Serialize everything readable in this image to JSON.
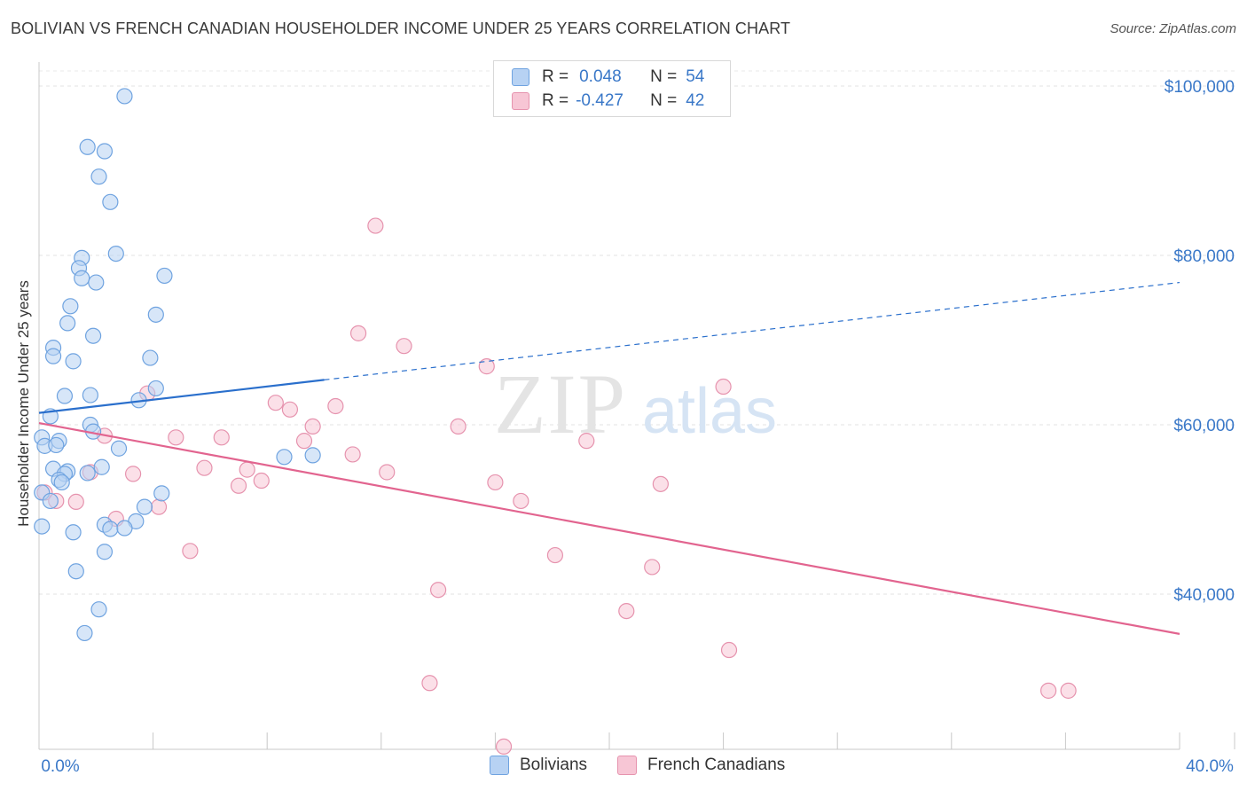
{
  "title": "BOLIVIAN VS FRENCH CANADIAN HOUSEHOLDER INCOME UNDER 25 YEARS CORRELATION CHART",
  "source": "Source: ZipAtlas.com",
  "watermark": {
    "zip": "ZIP",
    "atlas": "atlas"
  },
  "legend": {
    "r_label": "R =",
    "n_label": "N =",
    "rows": [
      {
        "r": "0.048",
        "n": "54",
        "color": "#6fa3e0"
      },
      {
        "r": "-0.427",
        "n": "42",
        "color": "#ea8aa8"
      }
    ]
  },
  "colors": {
    "blue_fill": "#b7d2f3",
    "blue_stroke": "#6fa3e0",
    "blue_line": "#2a6fcc",
    "pink_fill": "#f7c6d5",
    "pink_stroke": "#e693ae",
    "pink_line": "#e2648f",
    "tick_label": "#3a78c8"
  },
  "chart_data": {
    "type": "scatter",
    "title": "BOLIVIAN VS FRENCH CANADIAN HOUSEHOLDER INCOME UNDER 25 YEARS CORRELATION CHART",
    "xlabel": "",
    "ylabel": "Householder Income Under 25 years",
    "xlim": [
      0,
      40
    ],
    "ylim": [
      20000,
      103000
    ],
    "x_tick_labels": [
      "0.0%",
      "40.0%"
    ],
    "y_ticks": [
      40000,
      60000,
      80000,
      100000
    ],
    "y_tick_labels": [
      "$40,000",
      "$60,000",
      "$80,000",
      "$100,000"
    ],
    "grid": true,
    "series": [
      {
        "name": "Bolivians",
        "points": [
          [
            3.0,
            98800
          ],
          [
            1.7,
            92800
          ],
          [
            2.3,
            92300
          ],
          [
            2.1,
            89300
          ],
          [
            2.5,
            86300
          ],
          [
            2.7,
            80200
          ],
          [
            1.5,
            79700
          ],
          [
            1.4,
            78500
          ],
          [
            1.5,
            77300
          ],
          [
            2.0,
            76800
          ],
          [
            4.4,
            77600
          ],
          [
            1.1,
            74000
          ],
          [
            4.1,
            73000
          ],
          [
            1.0,
            72000
          ],
          [
            1.9,
            70500
          ],
          [
            0.5,
            69100
          ],
          [
            0.5,
            68100
          ],
          [
            3.9,
            67900
          ],
          [
            1.2,
            67500
          ],
          [
            4.1,
            64300
          ],
          [
            0.9,
            63400
          ],
          [
            1.8,
            63500
          ],
          [
            3.5,
            62900
          ],
          [
            0.4,
            61000
          ],
          [
            1.8,
            60000
          ],
          [
            1.9,
            59200
          ],
          [
            0.1,
            58500
          ],
          [
            0.2,
            57500
          ],
          [
            0.7,
            58100
          ],
          [
            0.6,
            57600
          ],
          [
            2.8,
            57200
          ],
          [
            8.6,
            56200
          ],
          [
            9.6,
            56400
          ],
          [
            0.5,
            54800
          ],
          [
            1.0,
            54500
          ],
          [
            1.7,
            54300
          ],
          [
            2.2,
            55000
          ],
          [
            0.9,
            54200
          ],
          [
            0.7,
            53500
          ],
          [
            0.8,
            53200
          ],
          [
            0.1,
            52000
          ],
          [
            4.3,
            51900
          ],
          [
            0.4,
            51000
          ],
          [
            3.7,
            50300
          ],
          [
            2.3,
            48200
          ],
          [
            3.4,
            48600
          ],
          [
            2.5,
            47700
          ],
          [
            0.1,
            48000
          ],
          [
            3.0,
            47800
          ],
          [
            1.2,
            47300
          ],
          [
            2.3,
            45000
          ],
          [
            1.3,
            42700
          ],
          [
            2.1,
            38200
          ],
          [
            1.6,
            35400
          ]
        ]
      },
      {
        "name": "French Canadians",
        "points": [
          [
            11.8,
            83500
          ],
          [
            11.2,
            70800
          ],
          [
            12.8,
            69300
          ],
          [
            15.7,
            66900
          ],
          [
            24.0,
            64500
          ],
          [
            3.8,
            63700
          ],
          [
            8.3,
            62600
          ],
          [
            8.8,
            61800
          ],
          [
            10.4,
            62200
          ],
          [
            9.6,
            59800
          ],
          [
            14.7,
            59800
          ],
          [
            2.3,
            58700
          ],
          [
            4.8,
            58500
          ],
          [
            6.4,
            58500
          ],
          [
            9.3,
            58100
          ],
          [
            19.2,
            58100
          ],
          [
            11.0,
            56500
          ],
          [
            1.8,
            54400
          ],
          [
            3.3,
            54200
          ],
          [
            5.8,
            54900
          ],
          [
            7.3,
            54700
          ],
          [
            12.2,
            54400
          ],
          [
            7.0,
            52800
          ],
          [
            7.8,
            53400
          ],
          [
            16.0,
            53200
          ],
          [
            21.8,
            53000
          ],
          [
            0.2,
            52000
          ],
          [
            0.6,
            51000
          ],
          [
            1.3,
            50900
          ],
          [
            16.9,
            51000
          ],
          [
            4.2,
            50300
          ],
          [
            2.7,
            48900
          ],
          [
            5.3,
            45100
          ],
          [
            18.1,
            44600
          ],
          [
            21.5,
            43200
          ],
          [
            14.0,
            40500
          ],
          [
            20.6,
            38000
          ],
          [
            24.2,
            33400
          ],
          [
            13.7,
            29500
          ],
          [
            35.4,
            28600
          ],
          [
            36.1,
            28600
          ],
          [
            16.3,
            22000
          ]
        ]
      }
    ],
    "trend_lines": [
      {
        "name": "Bolivians",
        "solid": [
          [
            0,
            61400
          ],
          [
            10.0,
            65300
          ]
        ],
        "dashed": [
          [
            10.0,
            65300
          ],
          [
            40.0,
            76800
          ]
        ]
      },
      {
        "name": "French Canadians",
        "solid": [
          [
            0,
            60200
          ],
          [
            40.0,
            35300
          ]
        ]
      }
    ]
  },
  "bottom_legend": [
    {
      "label": "Bolivians"
    },
    {
      "label": "French Canadians"
    }
  ]
}
